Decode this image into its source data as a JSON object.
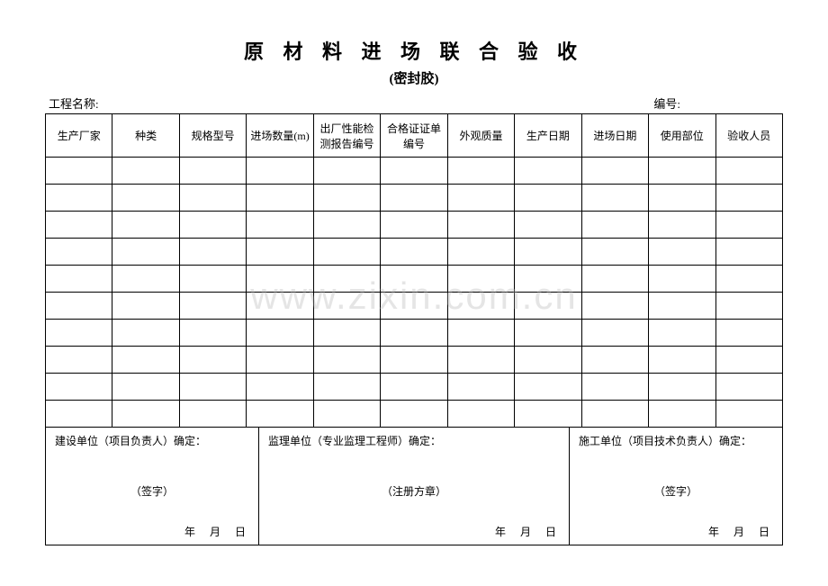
{
  "title": "原 材 料 进 场 联 合 验 收",
  "subtitle": "(密封胶)",
  "meta": {
    "project_label": "工程名称:",
    "number_label": "编号:"
  },
  "columns": [
    "生产厂家",
    "种类",
    "规格型号",
    "进场数量(m)",
    "出厂性能检测报告编号",
    "合格证证单编号",
    "外观质量",
    "生产日期",
    "进场日期",
    "使用部位",
    "验收人员"
  ],
  "row_count": 10,
  "signatures": {
    "col1": {
      "label": "建设单位（项目负责人）确定：",
      "note": "（签字）",
      "date": "年　月　日"
    },
    "col2": {
      "label": "监理单位（专业监理工程师）确定：",
      "note": "（注册方章）",
      "date": "年　月　日"
    },
    "col3": {
      "label": "施工单位（项目技术负责人）确定：",
      "note": "（签字）",
      "date": "年　月　日"
    }
  },
  "watermark": "www.zixin.com.cn"
}
